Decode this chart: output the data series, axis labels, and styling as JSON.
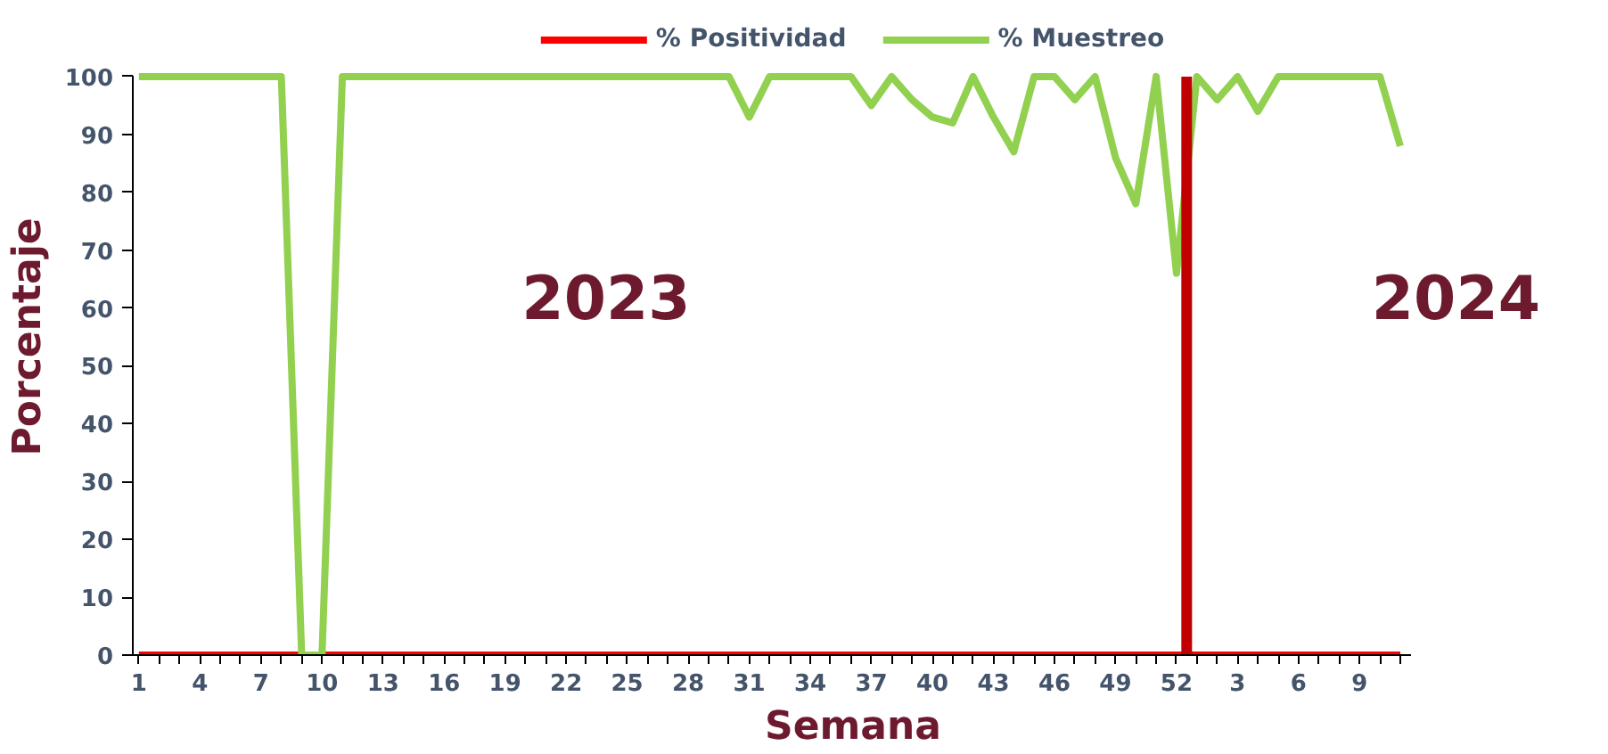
{
  "chart_data": {
    "type": "line",
    "xlabel": "Semana",
    "ylabel": "Porcentaje",
    "categories": [
      "1",
      null,
      null,
      "4",
      null,
      null,
      "7",
      null,
      null,
      "10",
      null,
      null,
      "13",
      null,
      null,
      "16",
      null,
      null,
      "19",
      null,
      null,
      "22",
      null,
      null,
      "25",
      null,
      null,
      "28",
      null,
      null,
      "31",
      null,
      null,
      "34",
      null,
      null,
      "37",
      null,
      null,
      "40",
      null,
      null,
      "43",
      null,
      null,
      "46",
      null,
      null,
      "49",
      null,
      null,
      "52",
      null,
      null,
      "3",
      null,
      null,
      "6",
      null,
      null,
      "9",
      null,
      null
    ],
    "series": [
      {
        "name": "% Positividad",
        "color": "#ff0000",
        "values": [
          0,
          0,
          0,
          0,
          0,
          0,
          0,
          0,
          0,
          0,
          0,
          0,
          0,
          0,
          0,
          0,
          0,
          0,
          0,
          0,
          0,
          0,
          0,
          0,
          0,
          0,
          0,
          0,
          0,
          0,
          0,
          0,
          0,
          0,
          0,
          0,
          0,
          0,
          0,
          0,
          0,
          0,
          0,
          0,
          0,
          0,
          0,
          0,
          0,
          0,
          0,
          0,
          0,
          0,
          0,
          0,
          0,
          0,
          0,
          0,
          0,
          0,
          0
        ]
      },
      {
        "name": "% Muestreo",
        "color": "#92d050",
        "values": [
          100,
          100,
          100,
          100,
          100,
          100,
          100,
          100,
          0,
          0,
          100,
          100,
          100,
          100,
          100,
          100,
          100,
          100,
          100,
          100,
          100,
          100,
          100,
          100,
          100,
          100,
          100,
          100,
          100,
          100,
          93,
          100,
          100,
          100,
          100,
          100,
          95,
          100,
          96,
          93,
          92,
          100,
          93,
          87,
          100,
          100,
          96,
          100,
          86,
          78,
          100,
          66,
          100,
          96,
          100,
          94,
          100,
          100,
          100,
          100,
          100,
          100,
          88
        ]
      }
    ],
    "ylim": [
      0,
      100
    ],
    "yticks": [
      0,
      10,
      20,
      30,
      40,
      50,
      60,
      70,
      80,
      90,
      100
    ],
    "ref_lines": [
      {
        "axis": "x",
        "value": "52",
        "label": null,
        "color": "#c00000"
      }
    ],
    "annotations": [
      "2023",
      "2024"
    ],
    "legend": "top",
    "grid": false,
    "marker": "none",
    "line_style": "solid"
  }
}
